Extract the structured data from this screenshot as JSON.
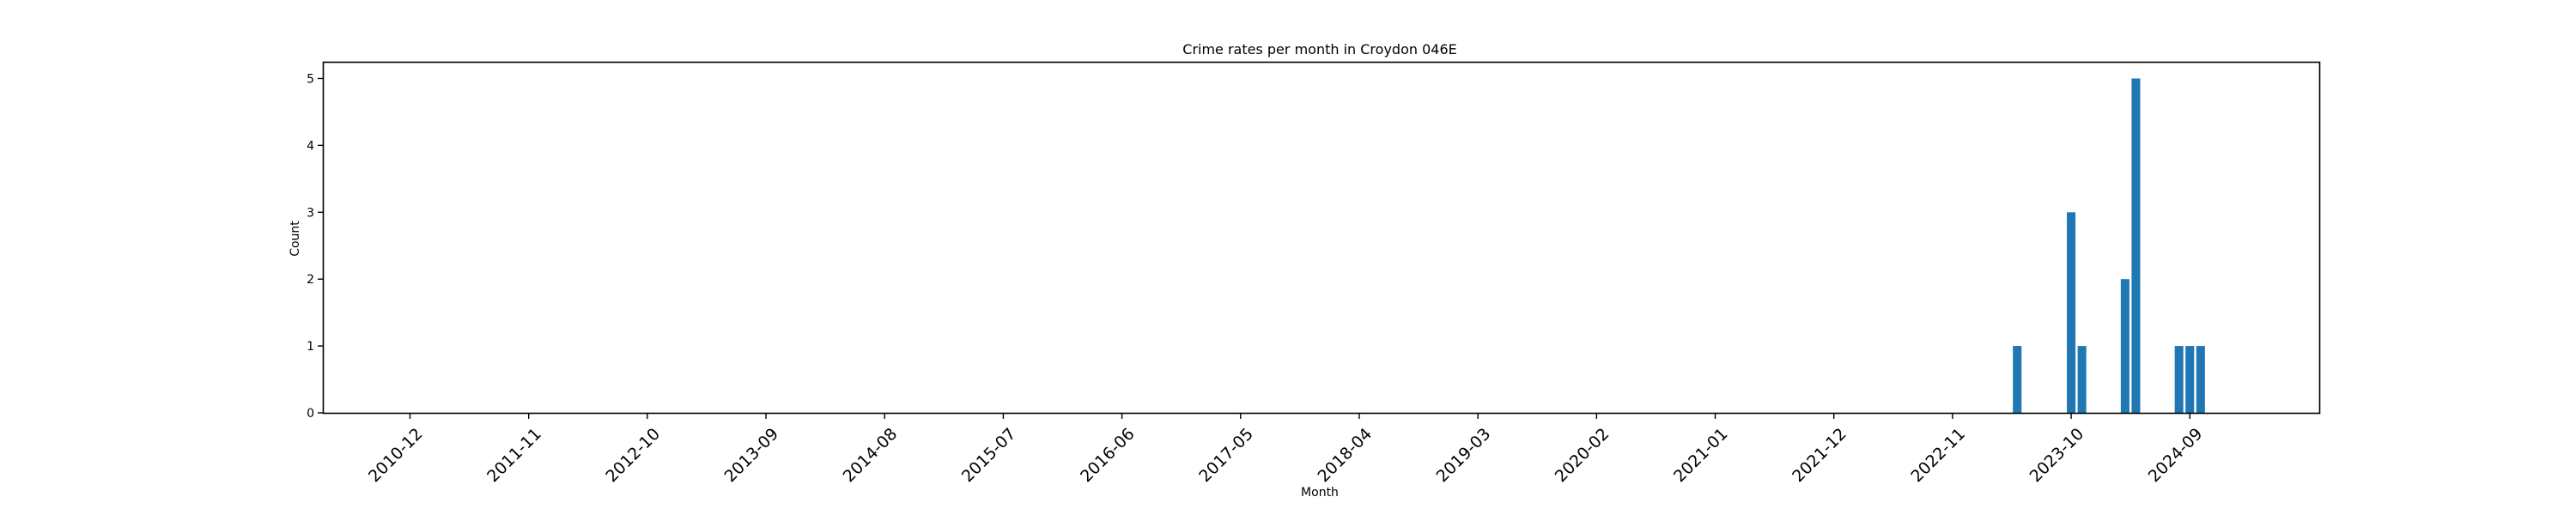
{
  "chart_data": {
    "type": "bar",
    "title": "Crime rates per month in Croydon 046E",
    "xlabel": "Month",
    "ylabel": "Count",
    "x_axis_type": "date-month",
    "xlim": [
      "2010-04",
      "2025-09"
    ],
    "ylim": [
      0,
      5.25
    ],
    "yticks": [
      0,
      1,
      2,
      3,
      4,
      5
    ],
    "xtick_labels": [
      "2010-12",
      "2011-11",
      "2012-10",
      "2013-09",
      "2014-08",
      "2015-07",
      "2016-06",
      "2017-05",
      "2018-04",
      "2019-03",
      "2020-02",
      "2021-01",
      "2021-12",
      "2022-11",
      "2023-10",
      "2024-09"
    ],
    "categories": [
      "2023-05",
      "2023-10",
      "2023-11",
      "2024-03",
      "2024-04",
      "2024-08",
      "2024-09",
      "2024-10"
    ],
    "values": [
      1,
      3,
      1,
      2,
      5,
      1,
      1,
      1
    ],
    "bar_color": "#1f77b4",
    "grid": false,
    "legend": "none"
  }
}
